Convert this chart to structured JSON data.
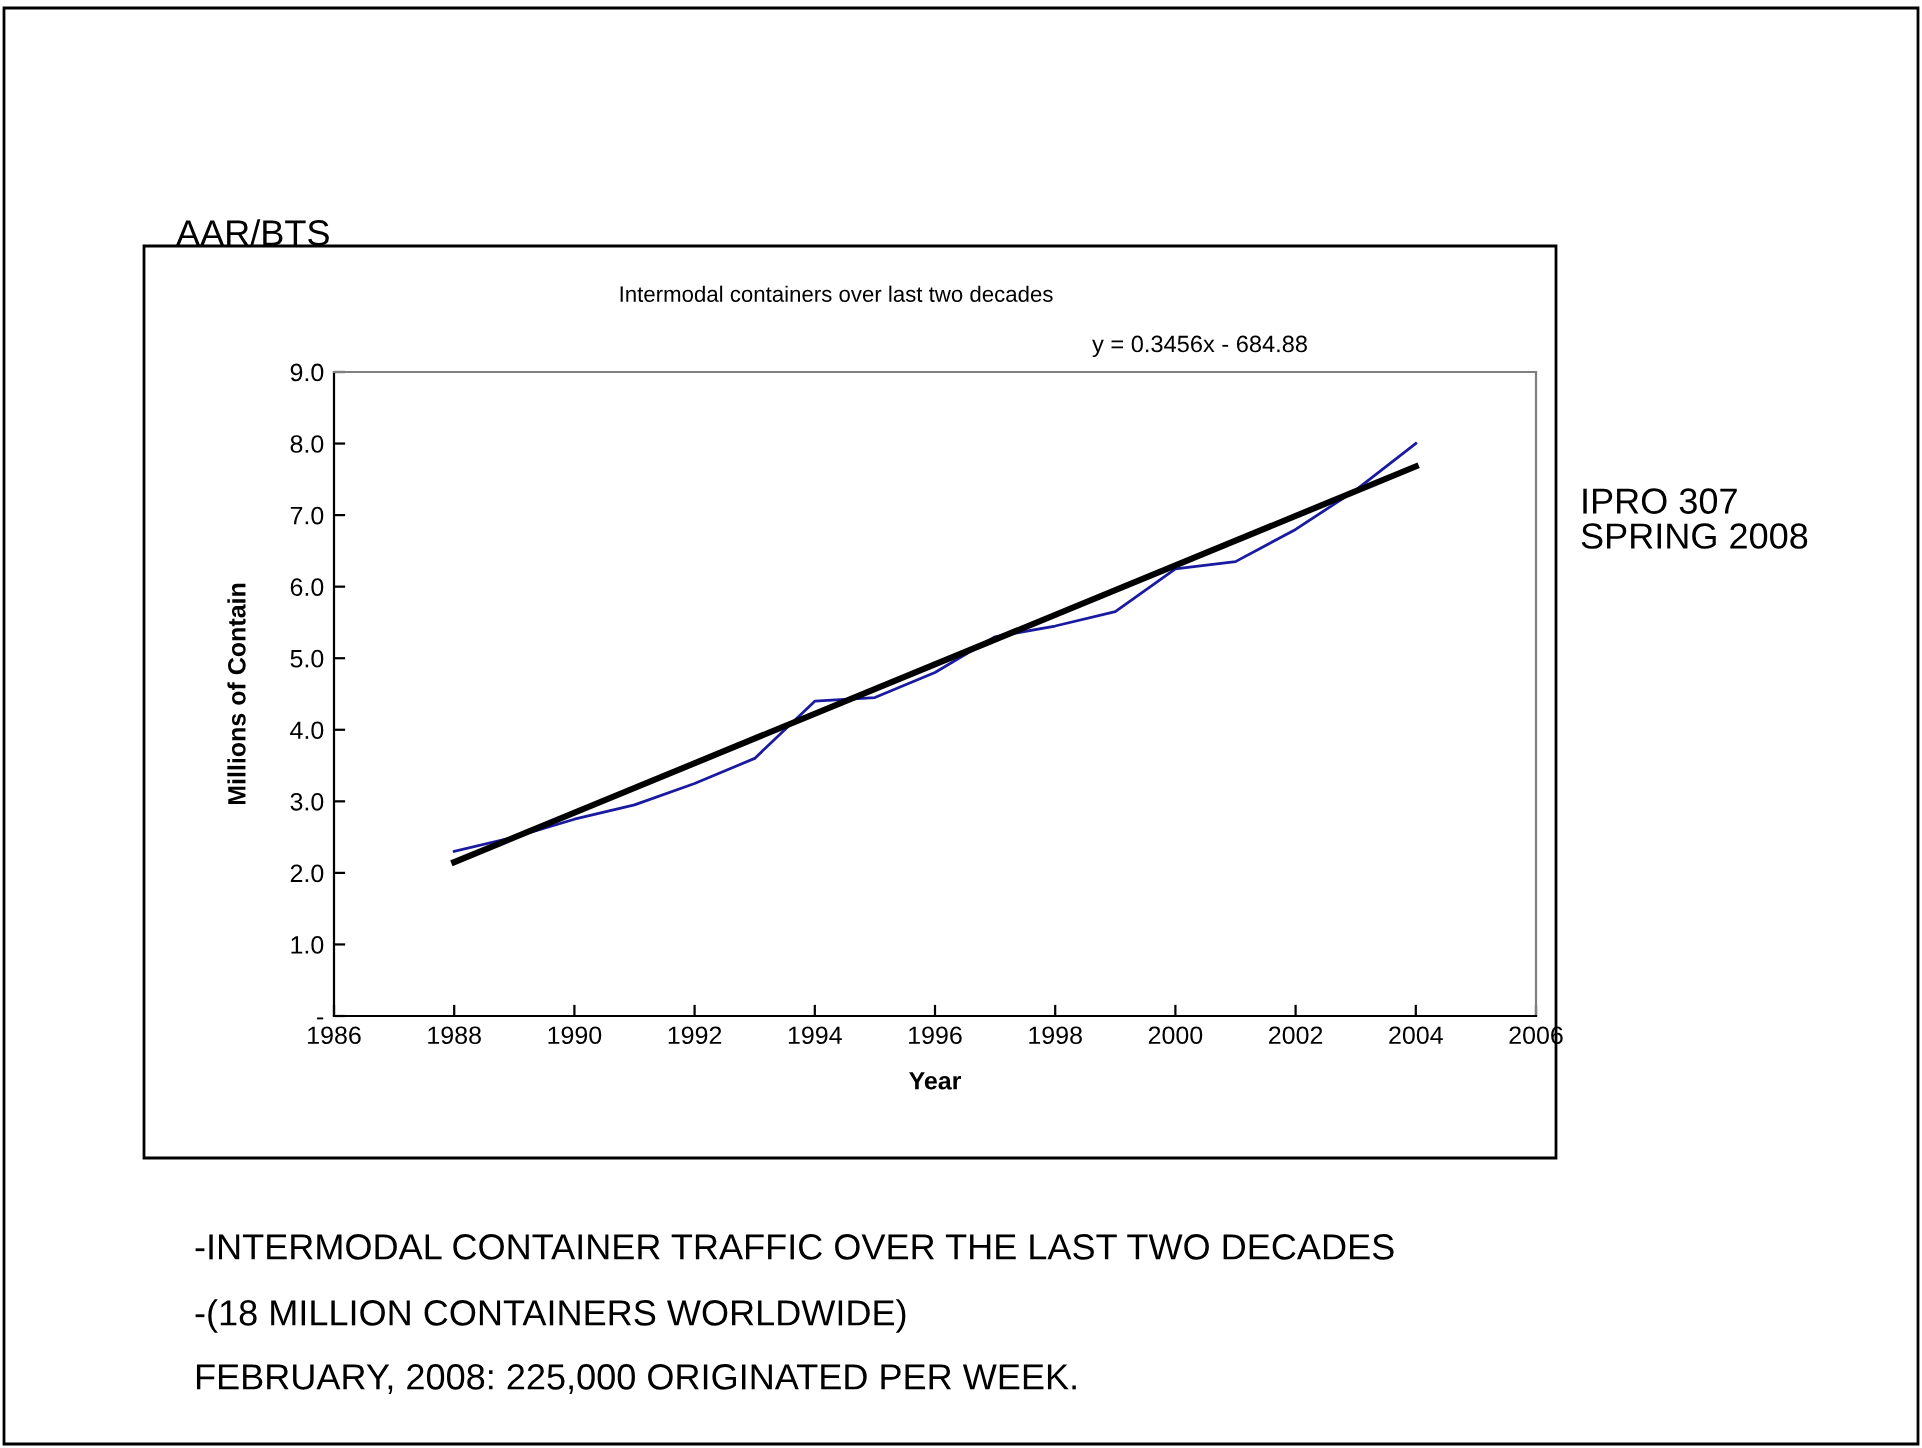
{
  "chart_data": {
    "type": "line",
    "title": "Intermodal containers over last two decades",
    "xlabel": "Year",
    "ylabel": "Millions of Contain",
    "annotations": [
      {
        "text": "y = 0.3456x - 684.88"
      },
      {
        "text": "AAR/BTS"
      },
      {
        "text": "IPRO 307\nSPRING 2008"
      },
      {
        "text": "-INTERMODAL CONTAINER TRAFFIC OVER THE LAST TWO DECADES"
      },
      {
        "text": "-(18 MILLION CONTAINERS WORLDWIDE)"
      },
      {
        "text": "FEBRUARY, 2008: 225,000 ORIGINATED PER WEEK."
      }
    ],
    "x": [
      1988,
      1989,
      1990,
      1991,
      1992,
      1993,
      1994,
      1995,
      1996,
      1997,
      1998,
      1999,
      2000,
      2001,
      2002,
      2003,
      2004
    ],
    "series": [
      {
        "color": "#1a1aa0",
        "values": [
          2.3,
          2.5,
          2.75,
          2.95,
          3.25,
          3.6,
          4.4,
          4.45,
          4.8,
          5.3,
          5.45,
          5.65,
          6.25,
          6.35,
          6.8,
          7.35,
          8.0
        ]
      },
      {
        "type": "line",
        "color": "#000000",
        "x": [
          1988,
          2004
        ],
        "values": [
          2.15,
          7.68
        ]
      }
    ],
    "xlim": [
      1986,
      2006
    ],
    "xticks": [
      1986,
      1988,
      1990,
      1992,
      1994,
      1996,
      1998,
      2000,
      2002,
      2004,
      2006
    ],
    "ylim": [
      0,
      9
    ],
    "yticks": [
      {
        "value": 0,
        "label": "-"
      },
      {
        "value": 1,
        "label": "1.0"
      },
      {
        "value": 2,
        "label": "2.0"
      },
      {
        "value": 3,
        "label": "3.0"
      },
      {
        "value": 4,
        "label": "4.0"
      },
      {
        "value": 5,
        "label": "5.0"
      },
      {
        "value": 6,
        "label": "6.0"
      },
      {
        "value": 7,
        "label": "7.0"
      },
      {
        "value": 8,
        "label": "8.0"
      },
      {
        "value": 9,
        "label": "9.0"
      }
    ],
    "grid": false,
    "legend": false,
    "marker": "none",
    "line_style": "solid"
  }
}
